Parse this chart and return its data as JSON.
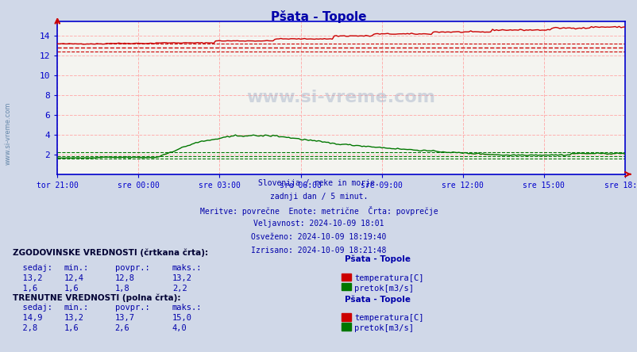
{
  "title": "Pšata - Topole",
  "bg_color": "#d0d8e8",
  "plot_bg_color": "#f4f4f0",
  "x_tick_labels": [
    "tor 21:00",
    "sre 00:00",
    "sre 03:00",
    "sre 06:00",
    "sre 09:00",
    "sre 12:00",
    "sre 15:00",
    "sre 18:00"
  ],
  "y_ticks": [
    0,
    2,
    4,
    6,
    8,
    10,
    12,
    14
  ],
  "ylim": [
    0,
    15.5
  ],
  "xlim": [
    0,
    287
  ],
  "n_points": 288,
  "temp_historical_avg": 12.8,
  "temp_historical_min": 12.4,
  "temp_historical_max": 13.2,
  "flow_historical_avg": 1.8,
  "flow_historical_min": 1.6,
  "flow_historical_max": 2.2,
  "temp_color": "#cc0000",
  "flow_color": "#007700",
  "grid_color": "#ffb0b0",
  "axis_color": "#0000cc",
  "text_color": "#0000aa",
  "subtitle_lines": [
    "Slovenija / reke in morje.",
    "zadnji dan / 5 minut.",
    "Meritve: povrečne  Enote: metrične  Črta: povprečje",
    "Veljavnost: 2024-10-09 18:01",
    "Osveženo: 2024-10-09 18:19:40",
    "Izrisano: 2024-10-09 18:21:48"
  ],
  "watermark": "www.si-vreme.com"
}
